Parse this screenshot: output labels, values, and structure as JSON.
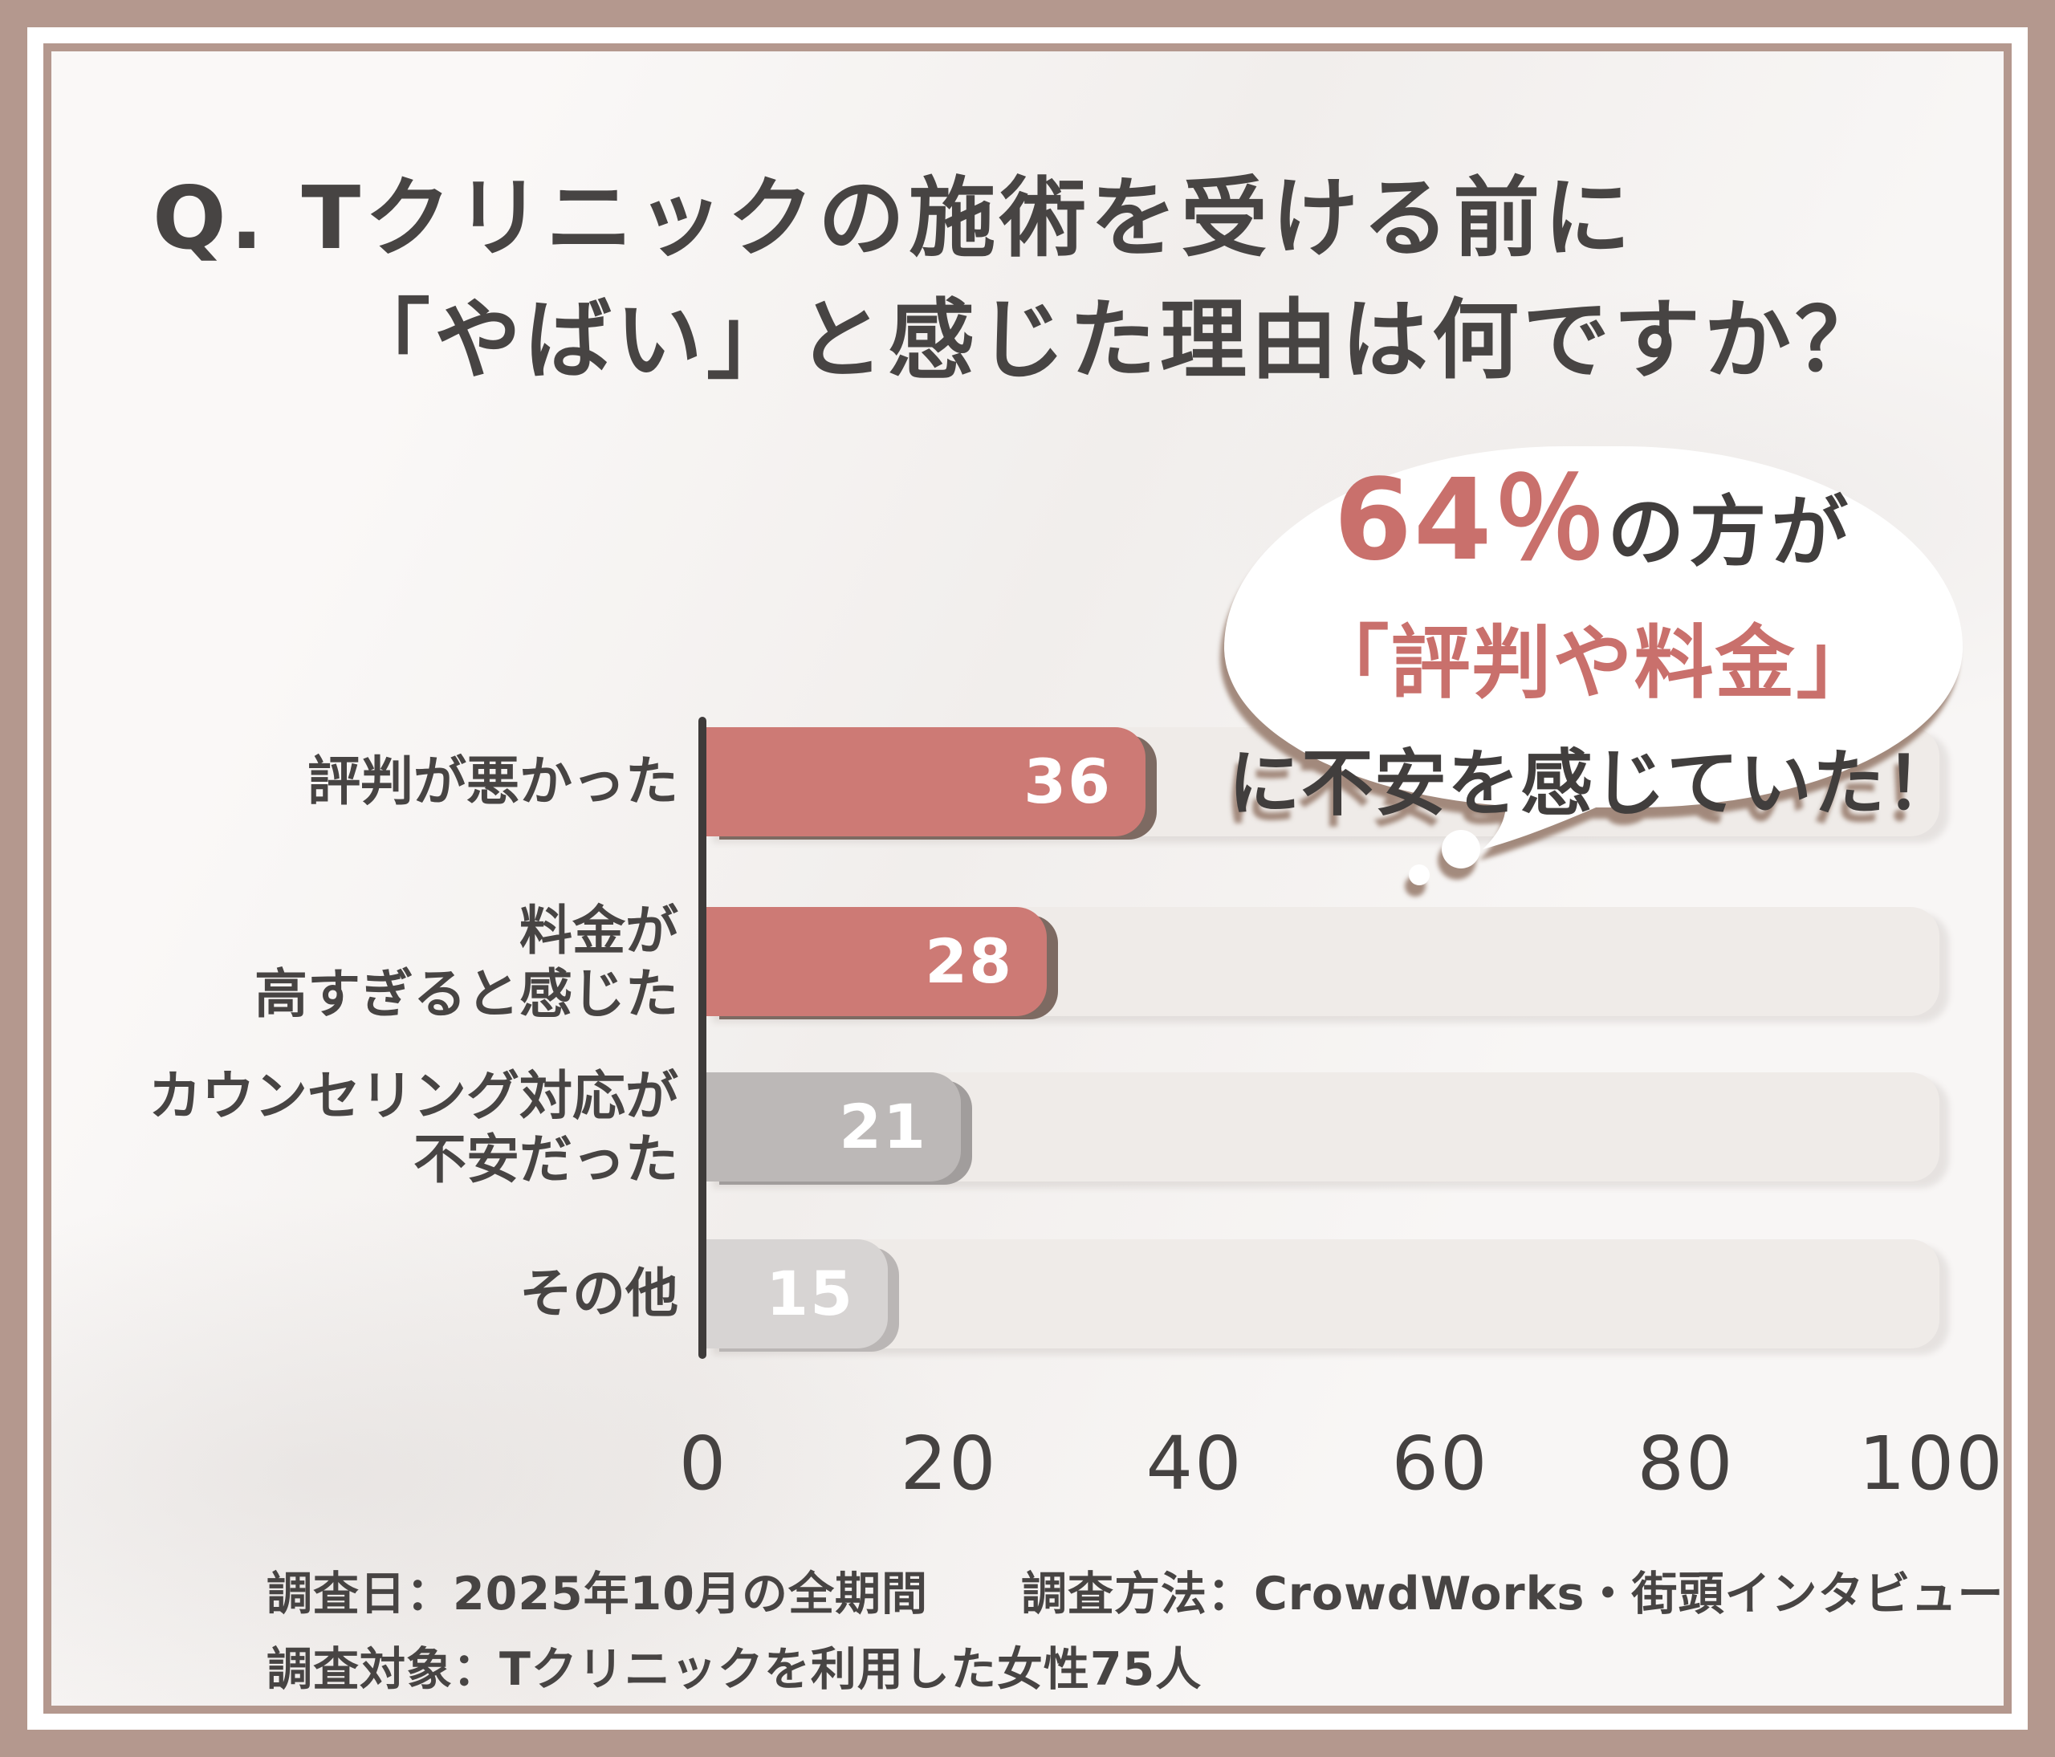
{
  "title": {
    "line1": "Q. Tクリニックの施術を受ける前に",
    "line2": "「やばい」と感じた理由は何ですか？"
  },
  "bubble": {
    "stat": "64％",
    "stat_suffix": "の方が",
    "line2": "「評判や料金」",
    "line3": "に不安を感じていた！"
  },
  "chart_data": {
    "type": "bar",
    "orientation": "horizontal",
    "title": "Tクリニックの施術を受ける前に「やばい」と感じた理由",
    "categories": [
      "評判が悪かった",
      "料金が高すぎると感じた",
      "カウンセリング対応が不安だった",
      "その他"
    ],
    "categories_lines": [
      [
        "評判が悪かった"
      ],
      [
        "料金が",
        "高すぎると感じた"
      ],
      [
        "カウンセリング対応が",
        "不安だった"
      ],
      [
        "その他"
      ]
    ],
    "values": [
      36,
      28,
      21,
      15
    ],
    "xlim": [
      0,
      100
    ],
    "ticks": [
      0,
      20,
      40,
      60,
      80,
      100
    ],
    "grid": false,
    "legend": false,
    "bar_colors": [
      "#cd7a75",
      "#cd7a75",
      "#bcb8b7",
      "#d7d4d3"
    ],
    "bar_shadow_colors": [
      "#7d6a62",
      "#7d6a62",
      "#a19d9c",
      "#bab6b5"
    ],
    "track_color": "#efebe8",
    "value_label_color": "#ffffff"
  },
  "footer": {
    "line1": "調査日：2025年10月の全期間　　調査方法：CrowdWorks・街頭インタビュー",
    "line2": "調査対象：Tクリニックを利用した女性75人"
  },
  "colors": {
    "frame": "#b4988e",
    "background": "#f7f5f3",
    "text_dark": "#474443",
    "accent_salmon": "#c9706c",
    "axis": "#3e3b3a"
  }
}
